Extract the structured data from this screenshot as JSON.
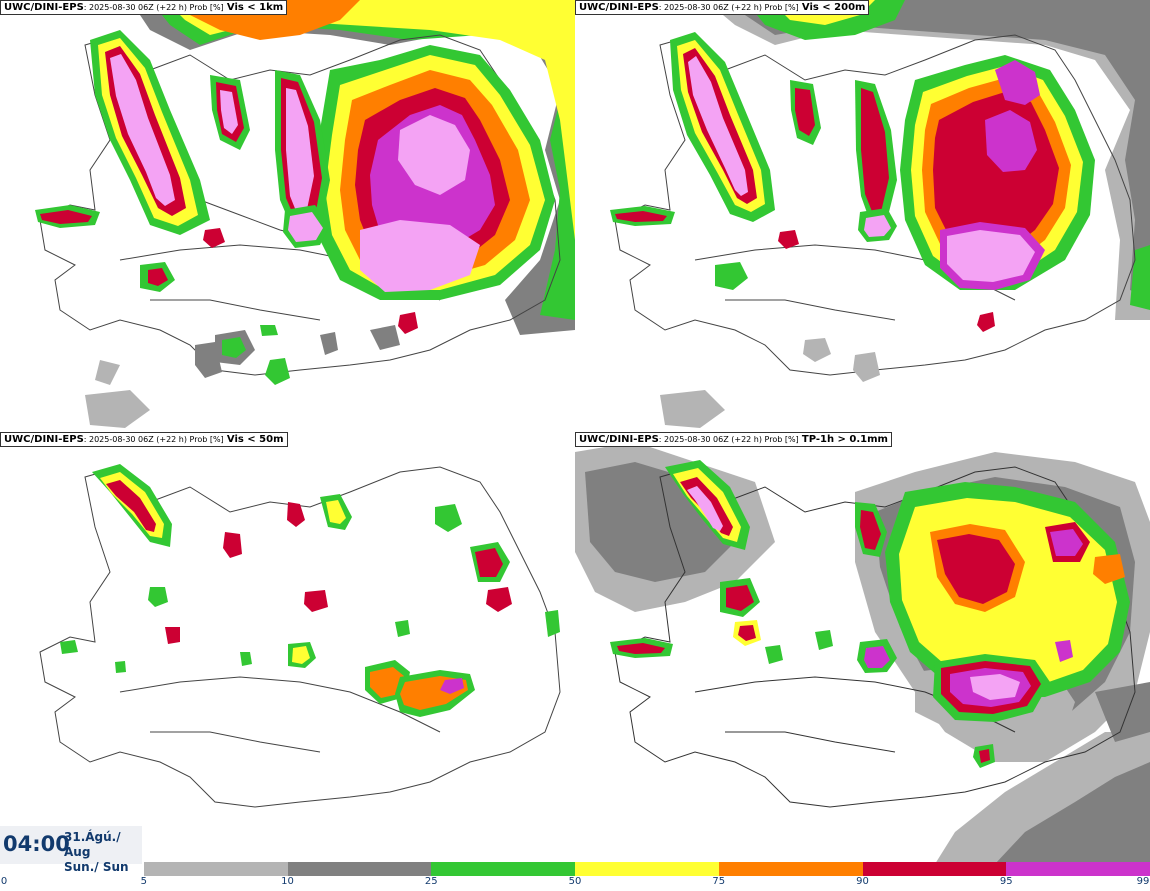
{
  "panels": [
    {
      "source": "UWC/DINI-EPS",
      "meta": ": 2025-08-30 06Z (+22 h) Prob [%]",
      "variable": "Vis < 1km"
    },
    {
      "source": "UWC/DINI-EPS",
      "meta": ": 2025-08-30 06Z (+22 h) Prob [%]",
      "variable": "Vis < 200m"
    },
    {
      "source": "UWC/DINI-EPS",
      "meta": ": 2025-08-30 06Z (+22 h) Prob [%]",
      "variable": "Vis < 50m"
    },
    {
      "source": "UWC/DINI-EPS",
      "meta": ": 2025-08-30 06Z (+22 h) Prob [%]",
      "variable": "TP-1h > 0.1mm"
    }
  ],
  "valid_time": {
    "time": "04:00",
    "date_line1": "31.Ágú./ Aug",
    "date_line2": "Sun./ Sun"
  },
  "colorbar": {
    "ticks": [
      "0",
      "5",
      "10",
      "25",
      "50",
      "75",
      "90",
      "95",
      "99"
    ],
    "colors": [
      "#ffffff",
      "#b4b4b4",
      "#808080",
      "#33c733",
      "#ffff33",
      "#ff7f00",
      "#cc0033",
      "#cc33cc",
      "#f4a3f4"
    ]
  },
  "legend_colors": {
    "light_gray": "#b4b4b4",
    "dark_gray": "#808080",
    "green": "#33c733",
    "yellow": "#ffff33",
    "orange": "#ff7f00",
    "crimson": "#cc0033",
    "magenta": "#cc33cc",
    "pink": "#f4a3f4"
  }
}
